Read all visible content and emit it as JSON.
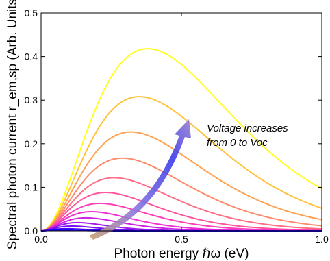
{
  "chart_data": {
    "type": "line",
    "xlabel": "Photon energy ℏω (eV)",
    "ylabel": "Spectral photon current r_em,sp (Arb. Units)",
    "xlim": [
      0.0,
      1.0
    ],
    "ylim": [
      0.0,
      0.5
    ],
    "xticks": [
      "0.0",
      "0.5",
      "1.0"
    ],
    "yticks": [
      "0.0",
      "0.1",
      "0.2",
      "0.3",
      "0.4",
      "0.5"
    ],
    "grid": false,
    "annotation": [
      "Voltage increases",
      "from 0 to Voc"
    ],
    "series": [
      {
        "peak_x": 0.38,
        "peak_y": 0.418,
        "color": "#ffff20"
      },
      {
        "peak_x": 0.35,
        "peak_y": 0.308,
        "color": "#ffc238"
      },
      {
        "peak_x": 0.32,
        "peak_y": 0.227,
        "color": "#ffa050"
      },
      {
        "peak_x": 0.29,
        "peak_y": 0.167,
        "color": "#ff8a6a"
      },
      {
        "peak_x": 0.26,
        "peak_y": 0.122,
        "color": "#ff6e84"
      },
      {
        "peak_x": 0.23,
        "peak_y": 0.088,
        "color": "#ff569d"
      },
      {
        "peak_x": 0.21,
        "peak_y": 0.063,
        "color": "#ff3fb5"
      },
      {
        "peak_x": 0.18,
        "peak_y": 0.044,
        "color": "#f02fd2"
      },
      {
        "peak_x": 0.16,
        "peak_y": 0.03,
        "color": "#cf23e3"
      },
      {
        "peak_x": 0.13,
        "peak_y": 0.019,
        "color": "#a51aea"
      },
      {
        "peak_x": 0.11,
        "peak_y": 0.011,
        "color": "#7a12f0"
      },
      {
        "peak_x": 0.09,
        "peak_y": 0.005,
        "color": "#4c0af4"
      },
      {
        "peak_x": 0.07,
        "peak_y": 0.002,
        "color": "#2005f8"
      }
    ]
  }
}
